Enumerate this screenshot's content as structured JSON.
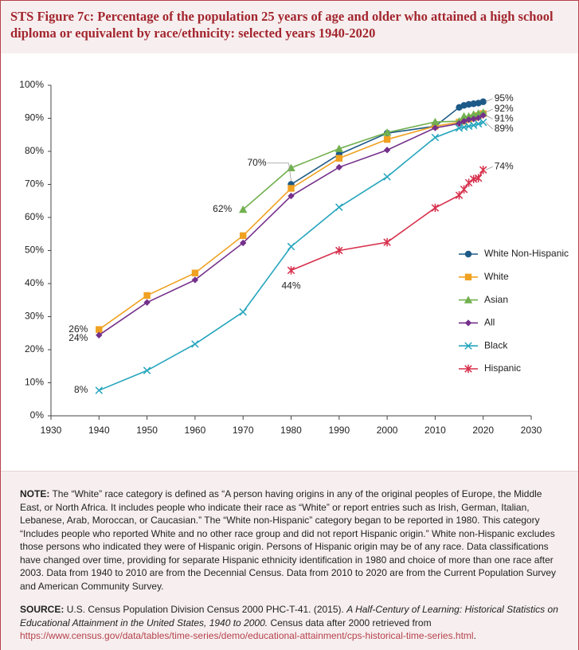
{
  "chart_data": {
    "type": "line",
    "title": "STS Figure 7c: Percentage of the population 25 years of age and older who attained a high school diploma or equivalent by race/ethnicity: selected years 1940-2020",
    "x": [
      1940,
      1950,
      1960,
      1970,
      1980,
      1990,
      2000,
      2010,
      2015,
      2016,
      2017,
      2018,
      2019,
      2020
    ],
    "xlim": [
      1930,
      2030
    ],
    "xticks": [
      1930,
      1940,
      1950,
      1960,
      1970,
      1980,
      1990,
      2000,
      2010,
      2020,
      2030
    ],
    "ylim": [
      0,
      100
    ],
    "yticks": [
      {
        "value": 0,
        "label": "0%"
      },
      {
        "value": 10,
        "label": "10%"
      },
      {
        "value": 20,
        "label": "20%"
      },
      {
        "value": 30,
        "label": "30%"
      },
      {
        "value": 40,
        "label": "40%"
      },
      {
        "value": 50,
        "label": "50%"
      },
      {
        "value": 60,
        "label": "60%"
      },
      {
        "value": 70,
        "label": "70%"
      },
      {
        "value": 80,
        "label": "80%"
      },
      {
        "value": 90,
        "label": "90%"
      },
      {
        "value": 100,
        "label": "100%"
      }
    ],
    "grid": false,
    "legend": "right",
    "series": [
      {
        "name": "White Non-Hispanic",
        "color": "#1d5a87",
        "marker": "circle",
        "values": [
          null,
          null,
          null,
          null,
          70.0,
          79.1,
          85.5,
          87.6,
          93.3,
          93.9,
          94.2,
          94.4,
          94.6,
          95.0
        ],
        "value_labels": [
          null,
          null,
          null,
          null,
          "70%",
          null,
          null,
          null,
          null,
          null,
          null,
          null,
          null,
          "95%"
        ]
      },
      {
        "name": "White",
        "color": "#f0a121",
        "marker": "square",
        "values": [
          26.1,
          36.4,
          43.2,
          54.5,
          68.8,
          77.9,
          83.6,
          87.6,
          88.8,
          89.1,
          89.7,
          90.2,
          90.8,
          91.4
        ],
        "value_labels": [
          "26%",
          null,
          null,
          null,
          null,
          null,
          null,
          null,
          null,
          null,
          null,
          null,
          null,
          null
        ]
      },
      {
        "name": "Asian",
        "color": "#72b04f",
        "marker": "triangle",
        "values": [
          null,
          null,
          null,
          62.4,
          75.0,
          80.8,
          85.7,
          88.9,
          89.1,
          90.6,
          90.6,
          91.2,
          91.5,
          91.8
        ],
        "value_labels": [
          null,
          null,
          null,
          "62%",
          null,
          null,
          null,
          null,
          null,
          null,
          null,
          null,
          null,
          "92%"
        ]
      },
      {
        "name": "All",
        "color": "#74308a",
        "marker": "diamond",
        "values": [
          24.4,
          34.3,
          41.1,
          52.3,
          66.5,
          75.2,
          80.4,
          87.1,
          88.4,
          89.1,
          89.6,
          89.8,
          90.1,
          90.9
        ],
        "value_labels": [
          "24%",
          null,
          null,
          null,
          null,
          null,
          null,
          null,
          null,
          null,
          null,
          null,
          null,
          "91%"
        ]
      },
      {
        "name": "Black",
        "color": "#25a5bd",
        "marker": "x",
        "values": [
          7.7,
          13.7,
          21.7,
          31.4,
          51.2,
          63.1,
          72.3,
          84.2,
          87.0,
          87.3,
          87.6,
          87.9,
          88.3,
          88.8
        ],
        "value_labels": [
          "8%",
          null,
          null,
          null,
          null,
          null,
          null,
          null,
          null,
          null,
          null,
          null,
          null,
          "89%"
        ]
      },
      {
        "name": "Hispanic",
        "color": "#d7304c",
        "marker": "star",
        "values": [
          null,
          null,
          null,
          null,
          44.0,
          50.0,
          52.5,
          62.9,
          66.7,
          68.5,
          70.5,
          71.6,
          71.9,
          74.4
        ],
        "value_labels": [
          null,
          null,
          null,
          null,
          "44%",
          null,
          null,
          null,
          null,
          null,
          null,
          null,
          null,
          "74%"
        ]
      }
    ]
  },
  "note": {
    "label": "NOTE:",
    "text": "The “White” race category is defined as “A person having origins in any of the original peoples of Europe, the Middle East, or North Africa. It includes people who indicate their race as “White” or report entries such as Irish, German, Italian, Lebanese, Arab, Moroccan, or Caucasian.” The “White non-Hispanic” category began to be reported in 1980. This category “Includes people who reported White and no other race group and did not report Hispanic origin.” White non-Hispanic excludes those persons who indicated they were of Hispanic origin. Persons of Hispanic origin may be of any race. Data classifications have changed over time, providing for separate Hispanic ethnicity identification in 1980 and choice of more than one race after 2003. Data from 1940 to 2010 are from the Decennial Census. Data from 2010 to 2020 are from the Current Population Survey and American Community Survey."
  },
  "source": {
    "label": "SOURCE:",
    "text1": "U.S. Census Population Division Census 2000 PHC-T-41. (2015).",
    "title": "A Half-Century of Learning: Historical Statistics on Educational Attainment in the United States, 1940 to 2000.",
    "text2": "Census data after 2000 retrieved from",
    "link": "https://www.census.gov/data/tables/time-series/demo/educational-attainment/cps-historical-time-series.html",
    "end": "."
  }
}
